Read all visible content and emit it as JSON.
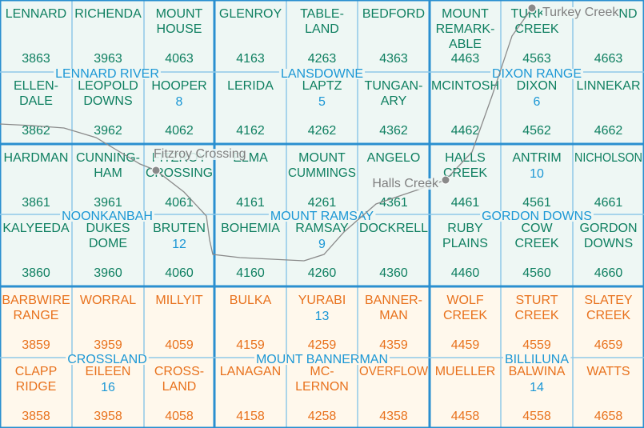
{
  "cells": [
    [
      {
        "name": [
          "LENNARD"
        ],
        "code": 3863
      },
      {
        "name": [
          "RICHENDA"
        ],
        "code": 3963
      },
      {
        "name": [
          "MOUNT",
          "HOUSE"
        ],
        "code": 4063
      },
      {
        "name": [
          "GLENROY"
        ],
        "code": 4163
      },
      {
        "name": [
          "TABLE-",
          "LAND"
        ],
        "code": 4263
      },
      {
        "name": [
          "BEDFORD"
        ],
        "code": 4363
      },
      {
        "name": [
          "MOUNT",
          "REMARK-",
          "ABLE"
        ],
        "code": 4463
      },
      {
        "name": [
          "TURKEY",
          "CREEK"
        ],
        "code": 4563
      },
      {
        "name": [
          "OSMOND"
        ],
        "code": 4663
      }
    ],
    [
      {
        "name": [
          "ELLEN-",
          "DALE"
        ],
        "code": 3862
      },
      {
        "name": [
          "LEOPOLD",
          "DOWNS"
        ],
        "code": 3962
      },
      {
        "name": [
          "HOOPER"
        ],
        "code": 4062
      },
      {
        "name": [
          "LERIDA"
        ],
        "code": 4162
      },
      {
        "name": [
          "LAPTZ"
        ],
        "code": 4262
      },
      {
        "name": [
          "TUNGAN-",
          "ARY"
        ],
        "code": 4362
      },
      {
        "name": [
          "MCINTOSH"
        ],
        "code": 4462
      },
      {
        "name": [
          "DIXON"
        ],
        "code": 4562
      },
      {
        "name": [
          "LINNEKAR"
        ],
        "code": 4662
      }
    ],
    [
      {
        "name": [
          "HARDMAN"
        ],
        "code": 3861
      },
      {
        "name": [
          "CUNNING-",
          "HAM"
        ],
        "code": 3961
      },
      {
        "name": [
          "FITZROY",
          "CROSSING"
        ],
        "code": 4061
      },
      {
        "name": [
          "ELMA"
        ],
        "code": 4161
      },
      {
        "name": [
          "MOUNT",
          "CUMMINGS"
        ],
        "code": 4261
      },
      {
        "name": [
          "ANGELO"
        ],
        "code": 4361
      },
      {
        "name": [
          "HALLS",
          "CREEK"
        ],
        "code": 4461
      },
      {
        "name": [
          "ANTRIM"
        ],
        "code": 4561
      },
      {
        "name": [
          "NICHOLSON"
        ],
        "code": 4661
      }
    ],
    [
      {
        "name": [
          "KALYEEDA"
        ],
        "code": 3860
      },
      {
        "name": [
          "DUKES",
          "DOME"
        ],
        "code": 3960
      },
      {
        "name": [
          "BRUTEN"
        ],
        "code": 4060
      },
      {
        "name": [
          "BOHEMIA"
        ],
        "code": 4160
      },
      {
        "name": [
          "RAMSAY"
        ],
        "code": 4260
      },
      {
        "name": [
          "DOCKRELL"
        ],
        "code": 4360
      },
      {
        "name": [
          "RUBY",
          "PLAINS"
        ],
        "code": 4460
      },
      {
        "name": [
          "COW",
          "CREEK"
        ],
        "code": 4560
      },
      {
        "name": [
          "GORDON",
          "DOWNS"
        ],
        "code": 4660
      }
    ],
    [
      {
        "name": [
          "BARBWIRE",
          "RANGE"
        ],
        "code": 3859
      },
      {
        "name": [
          "WORRAL"
        ],
        "code": 3959
      },
      {
        "name": [
          "MILLYIT"
        ],
        "code": 4059
      },
      {
        "name": [
          "BULKA"
        ],
        "code": 4159
      },
      {
        "name": [
          "YURABI"
        ],
        "code": 4259
      },
      {
        "name": [
          "BANNER-",
          "MAN"
        ],
        "code": 4359
      },
      {
        "name": [
          "WOLF",
          "CREEK"
        ],
        "code": 4459
      },
      {
        "name": [
          "STURT",
          "CREEK"
        ],
        "code": 4559
      },
      {
        "name": [
          "SLATEY",
          "CREEK"
        ],
        "code": 4659
      }
    ],
    [
      {
        "name": [
          "CLAPP",
          "RIDGE"
        ],
        "code": 3858
      },
      {
        "name": [
          "EILEEN"
        ],
        "code": 3958
      },
      {
        "name": [
          "CROSS-",
          "LAND"
        ],
        "code": 4058
      },
      {
        "name": [
          "LANAGAN"
        ],
        "code": 4158
      },
      {
        "name": [
          "MC-",
          "LERNON"
        ],
        "code": 4258
      },
      {
        "name": [
          "OVERFLOW"
        ],
        "code": 4358
      },
      {
        "name": [
          "MUELLER"
        ],
        "code": 4458
      },
      {
        "name": [
          "BALWINA"
        ],
        "code": 4558
      },
      {
        "name": [
          "WATTS"
        ],
        "code": 4658
      }
    ]
  ],
  "sheets": [
    {
      "name": "LENNARD RIVER",
      "number": 8
    },
    {
      "name": "LANSDOWNE",
      "number": 5
    },
    {
      "name": "DIXON RANGE",
      "number": 6
    },
    {
      "name": "NOONKANBAH",
      "number": 12
    },
    {
      "name": "MOUNT RAMSAY",
      "number": 9
    },
    {
      "name": "GORDON DOWNS",
      "number": 10
    },
    {
      "name": "CROSSLAND",
      "number": 16
    },
    {
      "name": "MOUNT BANNERMAN",
      "number": 13
    },
    {
      "name": "BILLILUNA",
      "number": 14
    }
  ],
  "towns": [
    {
      "name": "Turkey Creek"
    },
    {
      "name": "Fitzroy Crossing"
    },
    {
      "name": "Halls Creek"
    }
  ]
}
